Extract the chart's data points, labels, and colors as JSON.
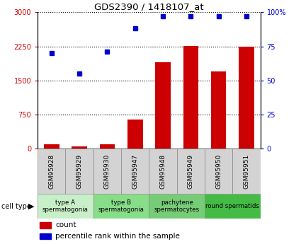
{
  "title": "GDS2390 / 1418107_at",
  "samples": [
    "GSM95928",
    "GSM95929",
    "GSM95930",
    "GSM95947",
    "GSM95948",
    "GSM95949",
    "GSM95950",
    "GSM95951"
  ],
  "counts": [
    100,
    50,
    105,
    650,
    1900,
    2260,
    1700,
    2240
  ],
  "percentiles": [
    70,
    55,
    71,
    88,
    97,
    97,
    97,
    97
  ],
  "bar_color": "#cc0000",
  "dot_color": "#0000cc",
  "ylim_left": [
    0,
    3000
  ],
  "ylim_right": [
    0,
    100
  ],
  "yticks_left": [
    0,
    750,
    1500,
    2250,
    3000
  ],
  "yticks_right": [
    0,
    25,
    50,
    75,
    100
  ],
  "yticklabels_right": [
    "0",
    "25",
    "50",
    "75",
    "100%"
  ],
  "cell_groups": [
    {
      "label": "type A\nspermatogonia",
      "start": 0,
      "end": 2,
      "color": "#c8f0c8"
    },
    {
      "label": "type B\nspermatogonia",
      "start": 2,
      "end": 4,
      "color": "#88dd88"
    },
    {
      "label": "pachytene\nspermatocytes",
      "start": 4,
      "end": 6,
      "color": "#77cc77"
    },
    {
      "label": "round spermatids",
      "start": 6,
      "end": 8,
      "color": "#44bb44"
    }
  ],
  "legend_count_label": "count",
  "legend_pct_label": "percentile rank within the sample",
  "cell_type_label": "cell type",
  "bg_color": "#ffffff",
  "plot_bg_color": "#ffffff",
  "sample_box_color": "#d3d3d3",
  "bar_width": 0.55
}
